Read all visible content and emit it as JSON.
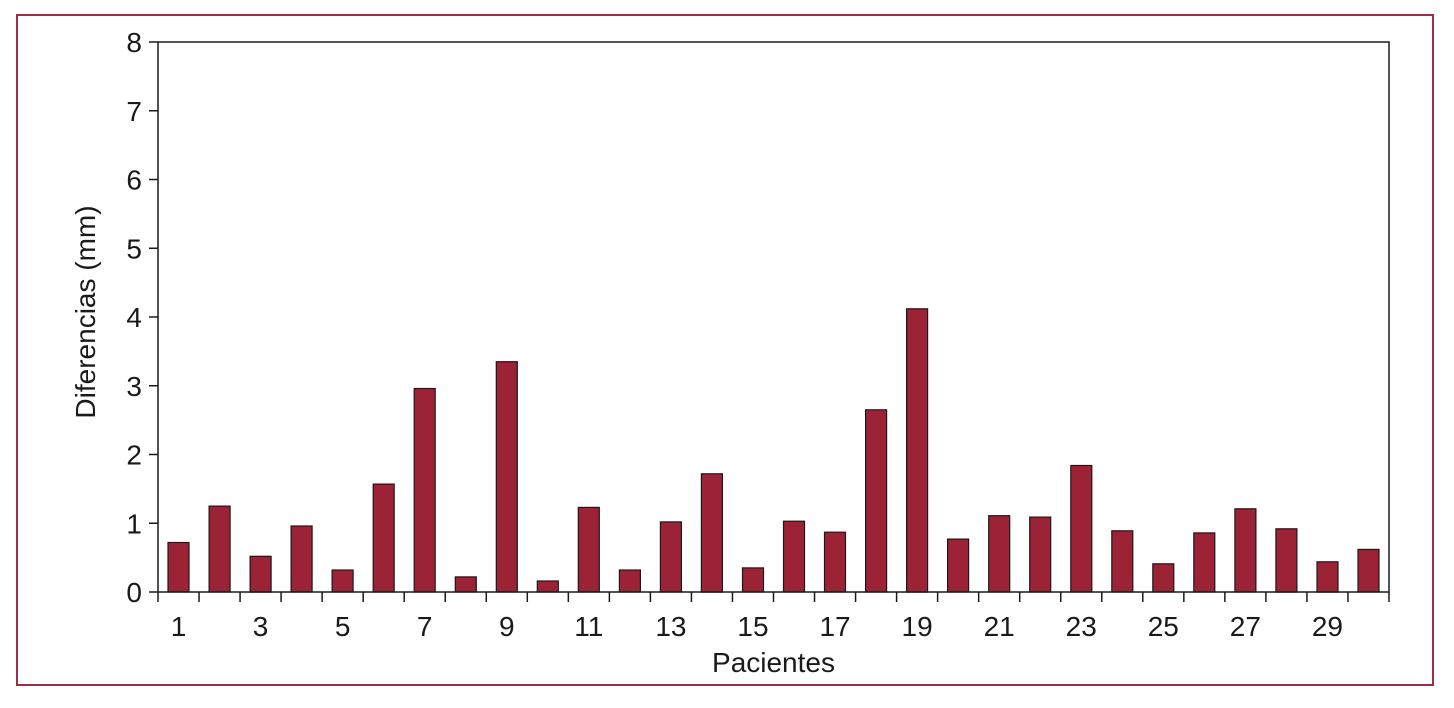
{
  "chart_data": {
    "type": "bar",
    "title": "",
    "xlabel": "Pacientes",
    "ylabel": "Diferencias (mm)",
    "ylim": [
      0,
      8
    ],
    "yticks": [
      0,
      1,
      2,
      3,
      4,
      5,
      6,
      7,
      8
    ],
    "categories": [
      1,
      2,
      3,
      4,
      5,
      6,
      7,
      8,
      9,
      10,
      11,
      12,
      13,
      14,
      15,
      16,
      17,
      18,
      19,
      20,
      21,
      22,
      23,
      24,
      25,
      26,
      27,
      28,
      29,
      30
    ],
    "x_tick_labels": [
      "1",
      "3",
      "5",
      "7",
      "9",
      "11",
      "13",
      "15",
      "17",
      "19",
      "21",
      "23",
      "25",
      "27",
      "29"
    ],
    "values": [
      0.72,
      1.25,
      0.52,
      0.96,
      0.32,
      1.57,
      2.96,
      0.22,
      3.35,
      0.16,
      1.23,
      0.32,
      1.02,
      1.72,
      0.35,
      1.03,
      0.87,
      2.65,
      4.12,
      0.77,
      1.11,
      1.09,
      1.84,
      0.89,
      0.41,
      0.86,
      1.21,
      0.92,
      0.44,
      0.62
    ],
    "bar_color": "#9b2335",
    "grid": false,
    "legend": "none"
  }
}
